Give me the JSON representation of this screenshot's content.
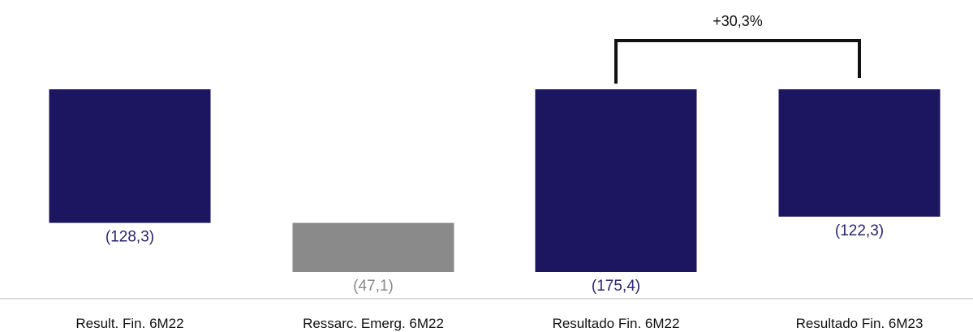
{
  "chart_data": {
    "type": "bar",
    "subtype": "waterfall",
    "categories": [
      "Result. Fin. 6M22",
      "Ressarc. Emerg. 6M22",
      "Resultado Fin. 6M22",
      "Resultado Fin. 6M23"
    ],
    "values": [
      -128.3,
      -47.1,
      -175.4,
      -122.3
    ],
    "value_labels": [
      "(128,3)",
      "(47,1)",
      "(175,4)",
      "(122,3)"
    ],
    "bar_kinds": [
      "total",
      "delta",
      "total",
      "total"
    ],
    "ylim": [
      -175.4,
      0
    ],
    "annotation": {
      "text": "+30,3%",
      "from_category": "Resultado Fin. 6M22",
      "to_category": "Resultado Fin. 6M23"
    },
    "grid": false,
    "legend": "none",
    "colors": {
      "total": "#1c1560",
      "delta": "#8a8a8a",
      "total_label": "#2a2470",
      "delta_label": "#8a8a8a",
      "axis": "#d0d0d0",
      "text": "#111111"
    }
  }
}
